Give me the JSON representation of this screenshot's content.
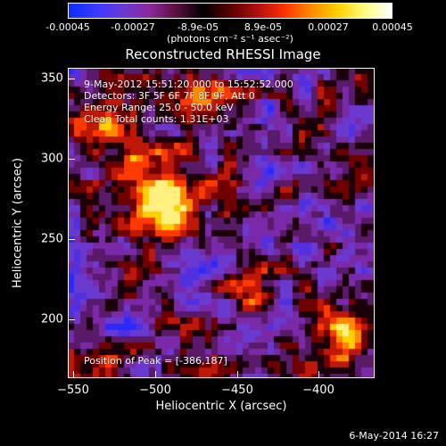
{
  "colorbar": {
    "ticks": [
      "-0.00045",
      "-0.00027",
      "-8.9e-05",
      "8.9e-05",
      "0.00027",
      "0.00045"
    ],
    "units": "(photons cm⁻² s⁻¹ asec⁻²)",
    "range": [
      -0.00045,
      0.00045
    ],
    "colors": [
      "#0a2cff",
      "#3a3aff",
      "#6a3ad8",
      "#8a2a9a",
      "#5a1040",
      "#000000",
      "#5a0000",
      "#b01010",
      "#ff3000",
      "#ff8a00",
      "#ffd000",
      "#ffff80",
      "#ffffff"
    ]
  },
  "plot": {
    "title": "Reconstructed RHESSI Image",
    "xlabel": "Heliocentric X (arcsec)",
    "ylabel": "Heliocentric Y (arcsec)",
    "xticks": [
      "−550",
      "−500",
      "−450",
      "−400"
    ],
    "yticks": [
      "350",
      "300",
      "250",
      "200"
    ],
    "xlim": [
      -555,
      -366
    ],
    "ylim": [
      165,
      360
    ]
  },
  "annotations": {
    "time_range": "9-May-2012 15:51:20.000 to 15:52:52.000",
    "detectors": "Detectors: 3F 5F 6F 7F 8F 9F, Att 0",
    "energy": "Energy Range: 25.0 - 50.0 keV",
    "method": "Clean    Total counts: 1.31E+03",
    "peak": "Position of Peak = [-386,187]"
  },
  "footer": {
    "date": "6-May-2014 16:27"
  }
}
